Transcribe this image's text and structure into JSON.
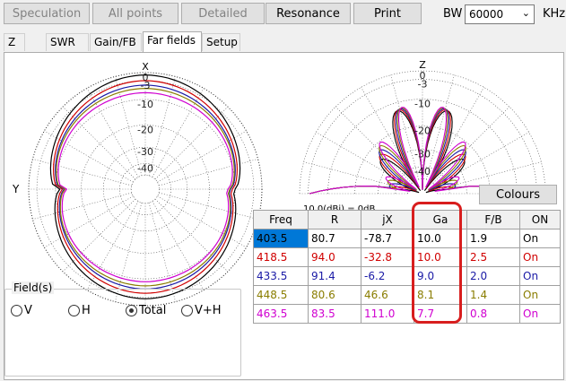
{
  "toolbar": {
    "speculation": "Speculation",
    "all_points": "All points",
    "detailed": "Detailed",
    "resonance": "Resonance",
    "print": "Print"
  },
  "bw": {
    "label": "BW",
    "value": "60000",
    "unit": "KHz"
  },
  "tabs": [
    "Z",
    "SWR",
    "Gain/FB",
    "Far fields",
    "Setup"
  ],
  "active_tab": "Far fields",
  "azimuth_plot": {
    "top_label": "X",
    "left_label": "Y",
    "db_labels": [
      "0",
      "-3",
      "-10",
      "-20",
      "-30",
      "-40"
    ]
  },
  "elevation_plot": {
    "top_label": "Z",
    "db_labels": [
      "0",
      "-3",
      "-10",
      "-20",
      "-30",
      "-40"
    ],
    "caption": "10.0(dBi) = 0dB"
  },
  "colours_button": "Colours",
  "table": {
    "headers": [
      "Freq",
      "R",
      "jX",
      "Ga",
      "F/B",
      "ON"
    ],
    "rows": [
      {
        "freq": "403.5",
        "r": "80.7",
        "jx": "-78.7",
        "ga": "10.0",
        "fb": "1.9",
        "on": "On",
        "color": "#000000"
      },
      {
        "freq": "418.5",
        "r": "94.0",
        "jx": "-32.8",
        "ga": "10.0",
        "fb": "2.5",
        "on": "On",
        "color": "#d00000"
      },
      {
        "freq": "433.5",
        "r": "91.4",
        "jx": "-6.2",
        "ga": "9.0",
        "fb": "2.0",
        "on": "On",
        "color": "#1a1aa6"
      },
      {
        "freq": "448.5",
        "r": "80.6",
        "jx": "46.6",
        "ga": "8.1",
        "fb": "1.4",
        "on": "On",
        "color": "#8a7d00"
      },
      {
        "freq": "463.5",
        "r": "83.5",
        "jx": "111.0",
        "ga": "7.7",
        "fb": "0.8",
        "on": "On",
        "color": "#d000d0"
      }
    ]
  },
  "fields": {
    "legend": "Field(s)",
    "options": [
      "V",
      "H",
      "Total",
      "V+H"
    ],
    "selected": "Total"
  }
}
